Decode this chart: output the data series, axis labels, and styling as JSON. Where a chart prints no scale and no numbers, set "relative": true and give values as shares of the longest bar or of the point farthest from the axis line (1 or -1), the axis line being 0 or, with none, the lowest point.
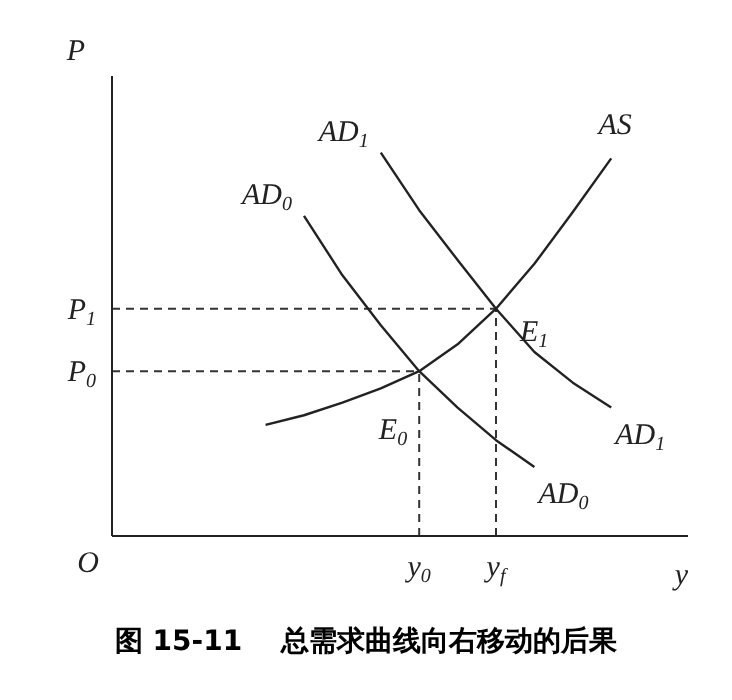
{
  "chart_data": {
    "type": "line",
    "title": "图 15-11    总需求曲线向右移动的后果",
    "xlabel": "y",
    "ylabel": "P",
    "relative": true,
    "marker": "none",
    "categories": [
      null,
      null,
      null,
      null,
      null,
      null,
      null,
      null,
      "y$_{0}$",
      null,
      "y$_{f}$",
      null,
      null,
      null,
      null,
      null
    ],
    "series": [
      {
        "name": "AS",
        "color": "#222222",
        "values": [
          null,
          null,
          null,
          null,
          0.29,
          0.315,
          0.348,
          0.385,
          0.43,
          0.5,
          0.593,
          0.71,
          0.845,
          0.985,
          null,
          null
        ]
      },
      {
        "name": "AD$_{0}$",
        "color": "#222222",
        "values": [
          null,
          null,
          null,
          null,
          null,
          0.835,
          0.68,
          0.55,
          0.43,
          0.335,
          0.25,
          0.18,
          null,
          null,
          null,
          null
        ]
      },
      {
        "name": "AD$_{1}$",
        "color": "#222222",
        "values": [
          null,
          null,
          null,
          null,
          null,
          null,
          null,
          1.0,
          0.85,
          0.72,
          0.593,
          0.48,
          0.4,
          0.335,
          null,
          null
        ]
      }
    ],
    "ref_lines": [
      {
        "axis": "y",
        "value": 0.43,
        "label": "P$_{0}$",
        "line_style": "dashed",
        "color": "#333333"
      },
      {
        "axis": "x",
        "value": "y$_{0}$",
        "line_style": "dashed",
        "color": "#333333"
      },
      {
        "axis": "y",
        "value": 0.593,
        "label": "P$_{1}$",
        "line_style": "dashed",
        "color": "#333333"
      },
      {
        "axis": "x",
        "value": "y$_{f}$",
        "line_style": "dashed",
        "color": "#333333"
      }
    ],
    "annotations": [
      {
        "text": "E$_{1}$",
        "x": "y$_{f}$",
        "y": 0.593
      },
      {
        "text": "E$_{0}$",
        "x": "y$_{0}$",
        "y": 0.43
      },
      "O"
    ]
  }
}
